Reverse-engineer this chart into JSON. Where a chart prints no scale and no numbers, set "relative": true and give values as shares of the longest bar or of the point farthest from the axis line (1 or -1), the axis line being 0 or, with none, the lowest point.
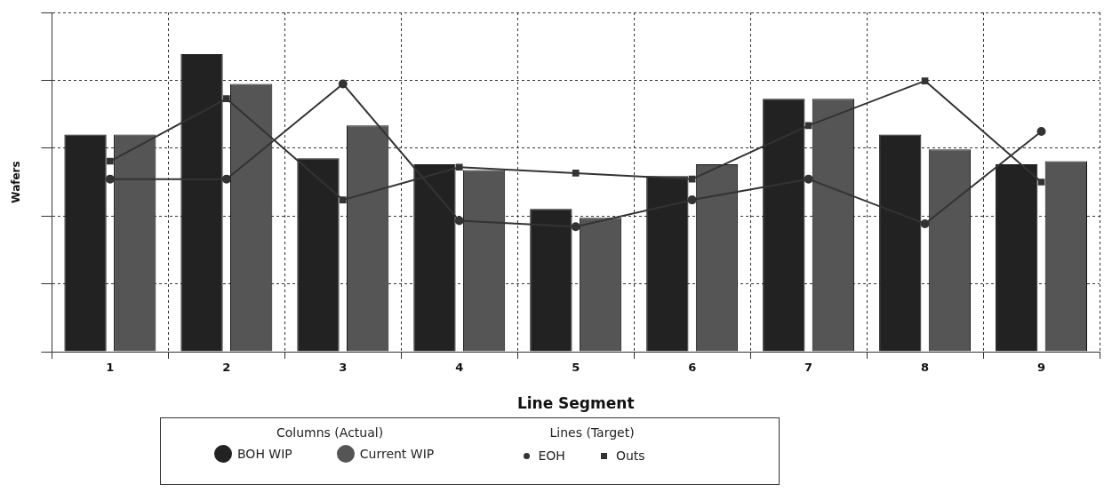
{
  "chart_data": {
    "type": "bar",
    "relative": true,
    "xlabel": "Line Segment",
    "ylabel": "Wafers",
    "categories": [
      "1",
      "2",
      "3",
      "4",
      "5",
      "6",
      "7",
      "8",
      "9"
    ],
    "series": [
      {
        "name": "BOH WIP",
        "color": "#222222",
        "values": [
          0.73,
          1.0,
          0.65,
          0.63,
          0.48,
          0.59,
          0.85,
          0.73,
          0.63
        ]
      },
      {
        "name": "Current WIP",
        "color": "#555555",
        "values": [
          0.73,
          0.9,
          0.76,
          0.61,
          0.45,
          0.63,
          0.85,
          0.68,
          0.64
        ]
      },
      {
        "name": "EOH",
        "type": "line",
        "color": "#333333",
        "marker": "circle",
        "values": [
          0.58,
          0.58,
          0.9,
          0.44,
          0.42,
          0.51,
          0.58,
          0.43,
          0.74
        ]
      },
      {
        "name": "Outs",
        "type": "line",
        "color": "#333333",
        "marker": "square",
        "values": [
          0.64,
          0.85,
          0.51,
          0.62,
          0.6,
          0.58,
          0.76,
          0.91,
          0.57
        ]
      }
    ],
    "annotations": [
      "Columns (Actual)",
      "Lines (Target)"
    ],
    "grid": true,
    "legend": "bottom"
  }
}
